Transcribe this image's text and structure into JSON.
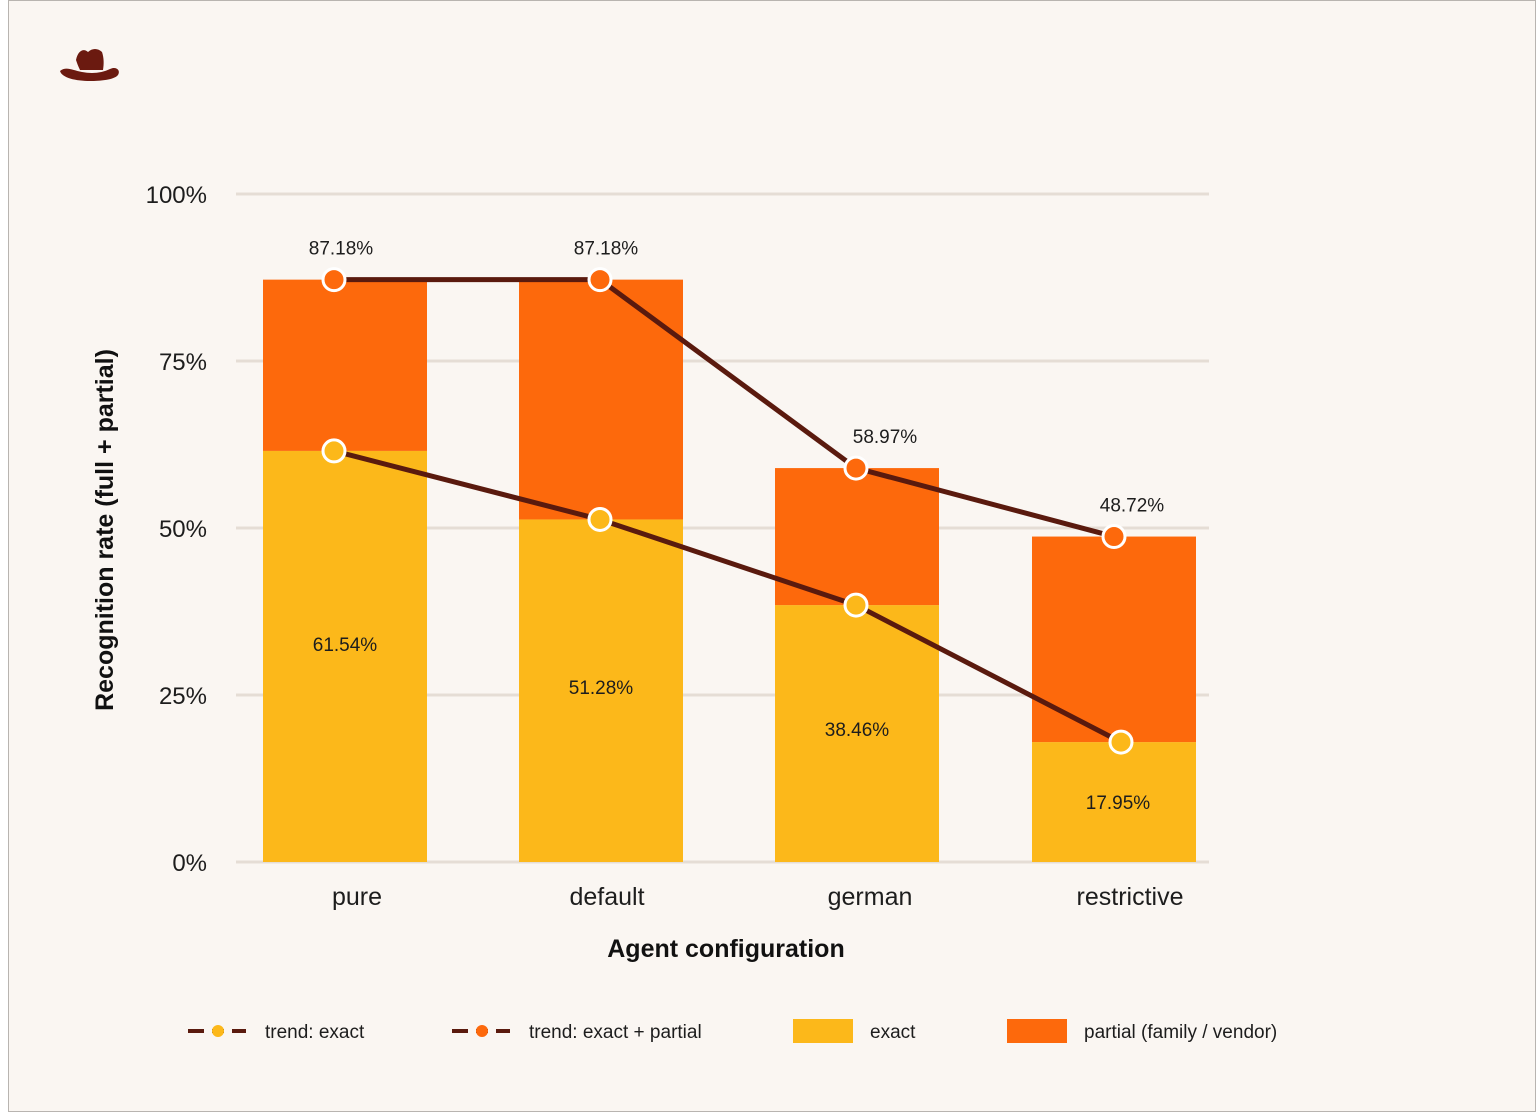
{
  "chart_data": {
    "type": "bar",
    "stacked": true,
    "categories": [
      "pure",
      "default",
      "german",
      "restrictive"
    ],
    "series": [
      {
        "name": "exact",
        "values": [
          61.54,
          51.28,
          38.46,
          17.95
        ],
        "color": "#fcb81a"
      },
      {
        "name": "partial (family / vendor)",
        "values": [
          25.64,
          35.9,
          20.51,
          30.77
        ],
        "color": "#fd690c"
      }
    ],
    "trend_lines": [
      {
        "name": "trend: exact",
        "values": [
          61.54,
          51.28,
          38.46,
          17.95
        ],
        "marker_color": "#fcb81a",
        "line_color": "#5a1a0e"
      },
      {
        "name": "trend: exact + partial",
        "values": [
          87.18,
          87.18,
          58.97,
          48.72
        ],
        "marker_color": "#fd690c",
        "line_color": "#5a1a0e"
      }
    ],
    "exact_labels": [
      "61.54%",
      "51.28%",
      "38.46%",
      "17.95%"
    ],
    "total_labels": [
      "87.18%",
      "87.18%",
      "58.97%",
      "48.72%"
    ],
    "y_ticks": [
      "0%",
      "25%",
      "50%",
      "75%",
      "100%"
    ],
    "ylim": [
      0,
      100
    ],
    "xlabel": "Agent configuration",
    "ylabel": "Recognition rate (full + partial)",
    "grid": true,
    "legend_position": "bottom",
    "legend": [
      "trend: exact",
      "trend: exact + partial",
      "exact",
      "partial (family / vendor)"
    ]
  },
  "logo": {
    "icon": "cowboy-hat-icon",
    "color": "#6b1a10"
  }
}
